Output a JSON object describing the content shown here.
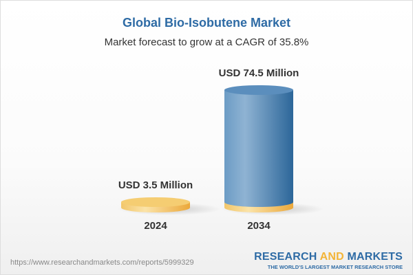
{
  "chart_data": {
    "type": "bar",
    "title": "Global Bio-Isobutene Market",
    "subtitle": "Market forecast to grow at a CAGR of 35.8%",
    "categories": [
      "2024",
      "2034"
    ],
    "values": [
      3.5,
      74.5
    ],
    "data_labels": [
      "USD 3.5 Million",
      "USD 74.5 Million"
    ],
    "unit": "USD Million",
    "style": "3d-cylinder",
    "grid": false,
    "colors": {
      "base": "#f3c25c",
      "bar": "#4a7fb0",
      "title": "#2e6ba5"
    }
  },
  "footer": {
    "url": "https://www.researchandmarkets.com/reports/5999329",
    "logo_part1": "RESEARCH ",
    "logo_part2": "AND",
    "logo_part3": " MARKETS",
    "tagline": "THE WORLD'S LARGEST MARKET RESEARCH STORE"
  }
}
